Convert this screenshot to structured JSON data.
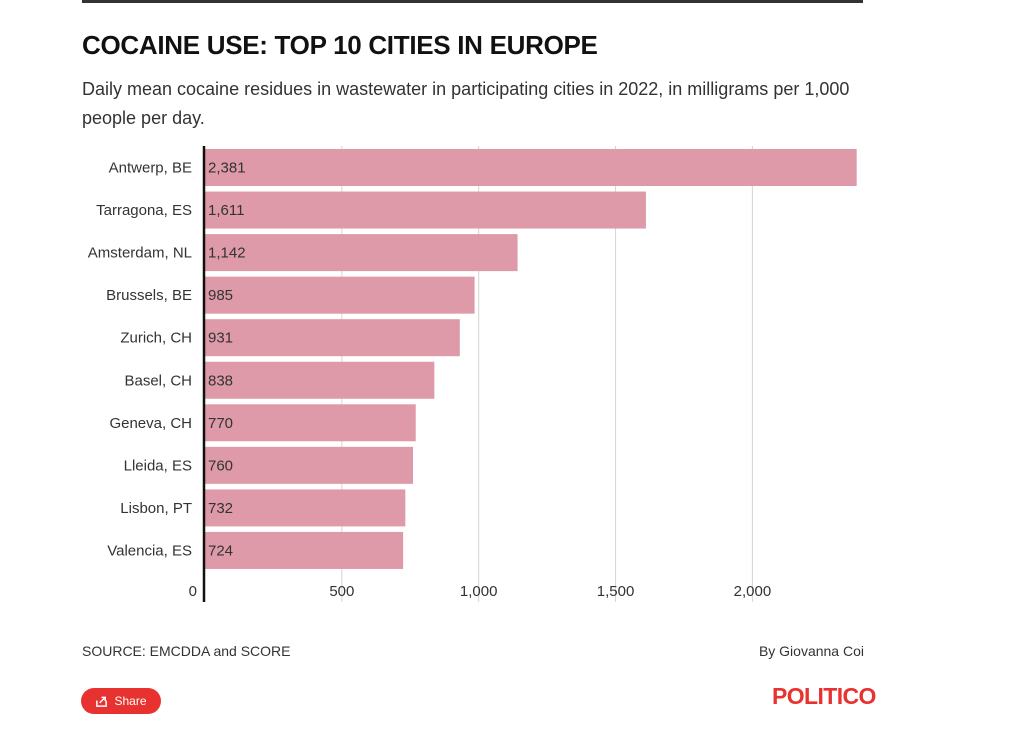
{
  "header": {
    "title": "COCAINE USE: TOP 10 CITIES IN EUROPE",
    "subtitle": "Daily mean cocaine residues in wastewater in participating cities in 2022, in milligrams per 1,000 people per day."
  },
  "chart_data": {
    "type": "bar",
    "orientation": "horizontal",
    "categories": [
      "Antwerp, BE",
      "Tarragona, ES",
      "Amsterdam, NL",
      "Brussels, BE",
      "Zurich, CH",
      "Basel, CH",
      "Geneva, CH",
      "Lleida, ES",
      "Lisbon, PT",
      "Valencia, ES"
    ],
    "values": [
      2381,
      1611,
      1142,
      985,
      931,
      838,
      770,
      760,
      732,
      724
    ],
    "value_labels": [
      "2,381",
      "1,611",
      "1,142",
      "985",
      "931",
      "838",
      "770",
      "760",
      "732",
      "724"
    ],
    "xlim": [
      0,
      2400
    ],
    "xticks": [
      0,
      500,
      1000,
      1500,
      2000
    ],
    "xtick_labels": [
      "0",
      "500",
      "1,000",
      "1,500",
      "2,000"
    ],
    "grid": true,
    "bar_color": "#de9aa8"
  },
  "footer": {
    "source": "SOURCE: EMCDDA and SCORE",
    "byline": "By Giovanna Coi",
    "share_label": "Share",
    "logo_text": "POLITICO"
  },
  "colors": {
    "brand": "#e8322f",
    "bar": "#de9aa8",
    "grid": "#d4d4d4",
    "axis": "#111111"
  }
}
